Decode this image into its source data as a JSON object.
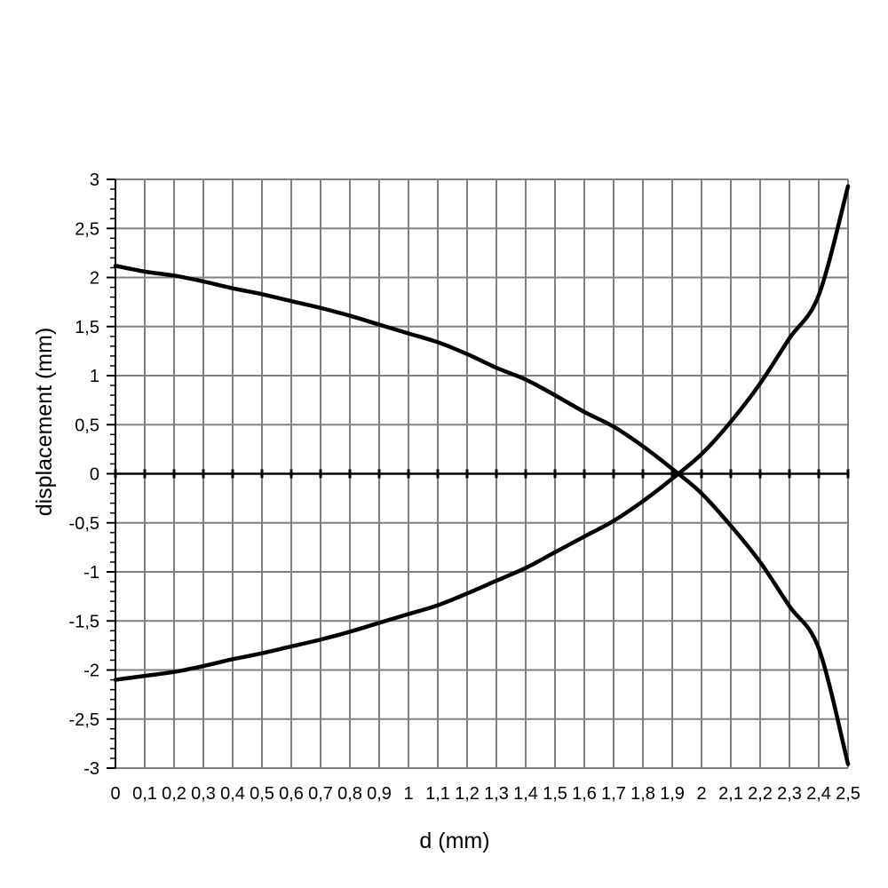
{
  "chart_data": {
    "type": "line",
    "xlabel": "d (mm)",
    "ylabel": "displacement (mm)",
    "xlim": [
      0,
      2.5
    ],
    "ylim": [
      -3,
      3
    ],
    "grid": true,
    "x_tick_labels": [
      "0",
      "0,1",
      "0,2",
      "0,3",
      "0,4",
      "0,5",
      "0,6",
      "0,7",
      "0,8",
      "0,9",
      "1",
      "1,1",
      "1,2",
      "1,3",
      "1,4",
      "1,5",
      "1,6",
      "1,7",
      "1,8",
      "1,9",
      "2",
      "2,1",
      "2,2",
      "2,3",
      "2,4",
      "2,5"
    ],
    "y_tick_labels": [
      "-3",
      "-2,5",
      "-2",
      "-1,5",
      "-1",
      "-0,5",
      "0",
      "0,5",
      "1",
      "1,5",
      "2",
      "2,5",
      "3"
    ],
    "x": [
      0,
      0.1,
      0.2,
      0.3,
      0.4,
      0.5,
      0.6,
      0.7,
      0.8,
      0.9,
      1.0,
      1.1,
      1.2,
      1.3,
      1.4,
      1.5,
      1.6,
      1.7,
      1.8,
      1.9,
      2.0,
      2.1,
      2.2,
      2.3,
      2.4,
      2.5
    ],
    "series": [
      {
        "values": [
          2.12,
          2.06,
          2.02,
          1.96,
          1.89,
          1.83,
          1.76,
          1.69,
          1.61,
          1.52,
          1.43,
          1.34,
          1.22,
          1.08,
          0.96,
          0.8,
          0.63,
          0.48,
          0.28,
          0.05,
          -0.2,
          -0.53,
          -0.9,
          -1.35,
          -1.78,
          -2.96
        ]
      },
      {
        "values": [
          -2.1,
          -2.06,
          -2.02,
          -1.96,
          -1.89,
          -1.83,
          -1.76,
          -1.69,
          -1.61,
          -1.52,
          -1.43,
          -1.34,
          -1.22,
          -1.09,
          -0.96,
          -0.8,
          -0.64,
          -0.48,
          -0.28,
          -0.05,
          0.2,
          0.53,
          0.92,
          1.38,
          1.82,
          2.93
        ]
      }
    ]
  }
}
